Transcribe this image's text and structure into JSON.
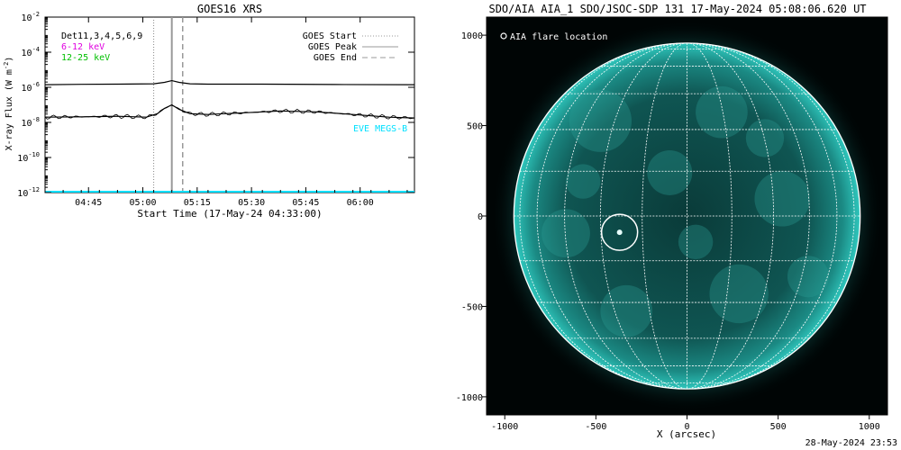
{
  "chart_data": [
    {
      "type": "line",
      "title": "GOES16 XRS",
      "xlabel": "Start Time (17-May-24 04:33:00)",
      "ylabel": "X-ray Flux (W m",
      "ylabel_exp": "-2",
      "ylabel_close": ")",
      "x_range": [
        "04:33",
        "06:15"
      ],
      "x_ticks": [
        "04:45",
        "05:00",
        "05:15",
        "05:30",
        "05:45",
        "06:00"
      ],
      "x_tick_minutes": [
        12,
        27,
        42,
        57,
        72,
        87
      ],
      "y_scale": "log",
      "y_range_exp": [
        -12,
        -2
      ],
      "y_tick_exps": [
        "-12",
        "-10",
        "-8",
        "-6",
        "-4",
        "-2"
      ],
      "y_tick_base": "10",
      "legend_left": [
        {
          "text": "Det11,3,4,5,6,9",
          "color": "#000000"
        },
        {
          "text": "6-12 keV",
          "color": "#e000e0"
        },
        {
          "text": "12-25 keV",
          "color": "#00c000"
        }
      ],
      "legend_right": [
        {
          "text": "GOES Start",
          "style": "dotted"
        },
        {
          "text": "GOES Peak",
          "style": "solid"
        },
        {
          "text": "GOES End",
          "style": "dashed"
        }
      ],
      "annotation": "EVE MEGS-B",
      "annotation_color": "#00e0ff",
      "markers": {
        "start_minute": 30,
        "peak_minute": 35,
        "end_minute": 38
      },
      "series": [
        {
          "color": "#000000",
          "x_minutes": [
            0,
            10,
            20,
            30,
            33,
            35,
            37,
            40,
            45,
            60,
            80,
            102
          ],
          "log_values": [
            -5.85,
            -5.83,
            -5.82,
            -5.8,
            -5.72,
            -5.62,
            -5.72,
            -5.8,
            -5.82,
            -5.82,
            -5.84,
            -5.85
          ]
        },
        {
          "color": "#000000",
          "x_minutes": [
            0,
            10,
            20,
            28,
            31,
            33,
            35,
            37,
            40,
            45,
            55,
            65,
            75,
            85,
            95,
            102
          ],
          "log_values": [
            -7.7,
            -7.68,
            -7.65,
            -7.7,
            -7.5,
            -7.2,
            -7.0,
            -7.25,
            -7.5,
            -7.55,
            -7.45,
            -7.35,
            -7.4,
            -7.55,
            -7.7,
            -7.75
          ]
        },
        {
          "color": "#00e0ff",
          "x_minutes": [
            0,
            102
          ],
          "log_values": [
            -11.95,
            -11.95
          ]
        }
      ]
    },
    {
      "type": "image",
      "title": "SDO/AIA AIA_1 SDO/JSOC-SDP 131 17-May-2024 05:08:06.620 UT",
      "xlabel": "X (arcsec)",
      "x_ticks": [
        "-1000",
        "-500",
        "0",
        "500",
        "1000"
      ],
      "x_tick_values": [
        -1000,
        -500,
        0,
        500,
        1000
      ],
      "y_ticks": [
        "1000",
        "500",
        "0",
        "-500",
        "-1000"
      ],
      "y_tick_values": [
        1000,
        500,
        0,
        -500,
        -1000
      ],
      "x_range": [
        -1100,
        1100
      ],
      "y_range": [
        -1100,
        1100
      ],
      "legend": "AIA flare location",
      "flare_location": {
        "x": -370,
        "y": -90
      },
      "solar_radius_arcsec": 950
    }
  ],
  "footer_timestamp": "28-May-2024 23:53"
}
